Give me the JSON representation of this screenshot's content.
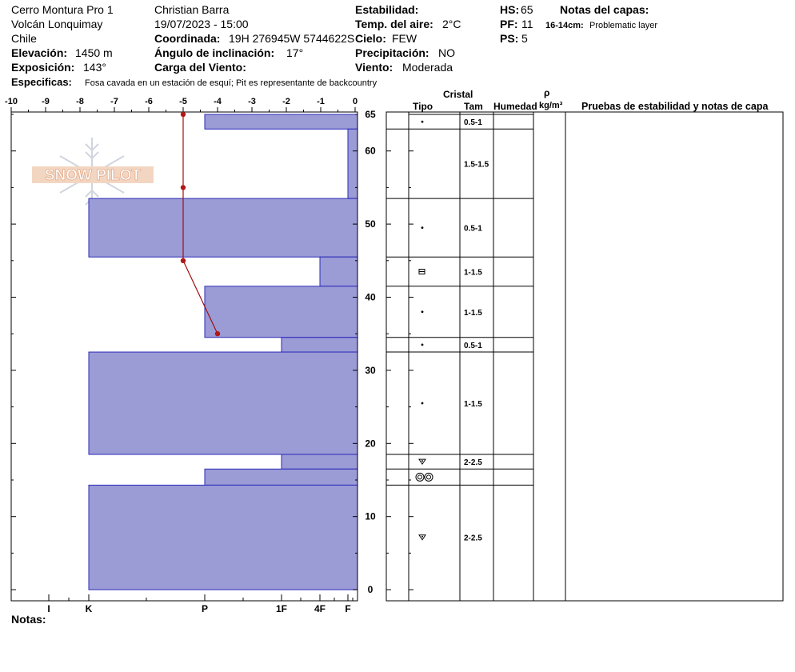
{
  "header": {
    "location": "Cerro Montura Pro 1",
    "region": "Volcán Lonquimay",
    "country": "Chile",
    "elevation_label": "Elevación:",
    "elevation_value": "1450 m",
    "aspect_label": "Exposición:",
    "aspect_value": "143°",
    "specifics_label": "Especificas:",
    "specifics_value": "Fosa cavada en un estación de esquí; Pit es representante de backcountry",
    "observer": "Christian Barra",
    "datetime": "19/07/2023 - 15:00",
    "coord_label": "Coordinada:",
    "coord_value": "19H 276945W 5744622S",
    "slope_label": "Ángulo de inclinación:",
    "slope_value": "17°",
    "wind_load_label": "Carga del Viento:",
    "stability_label": "Estabilidad:",
    "air_temp_label": "Temp. del aire:",
    "air_temp_value": "2°C",
    "sky_label": "Cielo:",
    "sky_value": "FEW",
    "precip_label": "Precipitación:",
    "precip_value": "NO",
    "wind_label": "Viento:",
    "wind_value": "Moderada",
    "hs_label": "HS:",
    "hs_value": "65",
    "pf_label": "PF:",
    "pf_value": "11",
    "ps_label": "PS:",
    "ps_value": "5",
    "layer_notes_title": "Notas del capas:",
    "layer_note_range": "16-14cm:",
    "layer_note_text": "Problematic layer"
  },
  "logo_text": "SNOW PILOT",
  "notes_label": "Notas:",
  "table_headers": {
    "crystal": "Cristal",
    "type": "Tipo",
    "size": "Tam",
    "moisture": "Humedad",
    "rho": "ρ",
    "density_unit": "kg/m³",
    "tests": "Pruebas de estabilidad y notas de capa"
  },
  "chart_data": {
    "type": "bar",
    "top_axis": {
      "ticks": [
        "-10",
        "-9",
        "-8",
        "-7",
        "-6",
        "-5",
        "-4",
        "-3",
        "-2",
        "-1",
        "0"
      ],
      "range": [
        -10,
        0
      ]
    },
    "height_axis": {
      "ticks": [
        "0",
        "10",
        "20",
        "30",
        "40",
        "50",
        "60",
        "65"
      ],
      "range": [
        0,
        65
      ]
    },
    "hardness_axis": {
      "ticks": [
        "I",
        "K",
        "P",
        "1F",
        "4F",
        "F"
      ]
    },
    "hardness_profile": [
      {
        "top": 65,
        "bottom": 63,
        "hardness": "P"
      },
      {
        "top": 63,
        "bottom": 53.5,
        "hardness": "F"
      },
      {
        "top": 53.5,
        "bottom": 45.5,
        "hardness": "K"
      },
      {
        "top": 45.5,
        "bottom": 41.5,
        "hardness": "4F"
      },
      {
        "top": 41.5,
        "bottom": 34.5,
        "hardness": "P"
      },
      {
        "top": 34.5,
        "bottom": 32.5,
        "hardness": "1F"
      },
      {
        "top": 32.5,
        "bottom": 18.5,
        "hardness": "K"
      },
      {
        "top": 18.5,
        "bottom": 16.5,
        "hardness": "1F"
      },
      {
        "top": 16.5,
        "bottom": 14.3,
        "hardness": "P"
      },
      {
        "top": 14.3,
        "bottom": 0,
        "hardness": "K"
      }
    ],
    "temperature_profile": [
      {
        "depth": 65,
        "temp": -5
      },
      {
        "depth": 55,
        "temp": -5
      },
      {
        "depth": 45,
        "temp": -5
      },
      {
        "depth": 35,
        "temp": -4
      }
    ],
    "layers": [
      {
        "top": 65,
        "bottom": 63,
        "type": "dot",
        "size": "0.5-1"
      },
      {
        "top": 63,
        "bottom": 53.5,
        "type": "",
        "size": "1.5-1.5"
      },
      {
        "top": 53.5,
        "bottom": 45.5,
        "type": "dot",
        "size": "0.5-1"
      },
      {
        "top": 45.5,
        "bottom": 41.5,
        "type": "facet",
        "size": "1-1.5"
      },
      {
        "top": 41.5,
        "bottom": 34.5,
        "type": "dot",
        "size": "1-1.5"
      },
      {
        "top": 34.5,
        "bottom": 32.5,
        "type": "dot",
        "size": "0.5-1"
      },
      {
        "top": 32.5,
        "bottom": 18.5,
        "type": "dot",
        "size": "1-1.5"
      },
      {
        "top": 18.5,
        "bottom": 16.5,
        "type": "depth-hoar",
        "size": "2-2.5"
      },
      {
        "top": 16.5,
        "bottom": 14.3,
        "type": "melt-cluster",
        "size": ""
      },
      {
        "top": 14.3,
        "bottom": 0,
        "type": "depth-hoar",
        "size": "2-2.5"
      }
    ]
  }
}
